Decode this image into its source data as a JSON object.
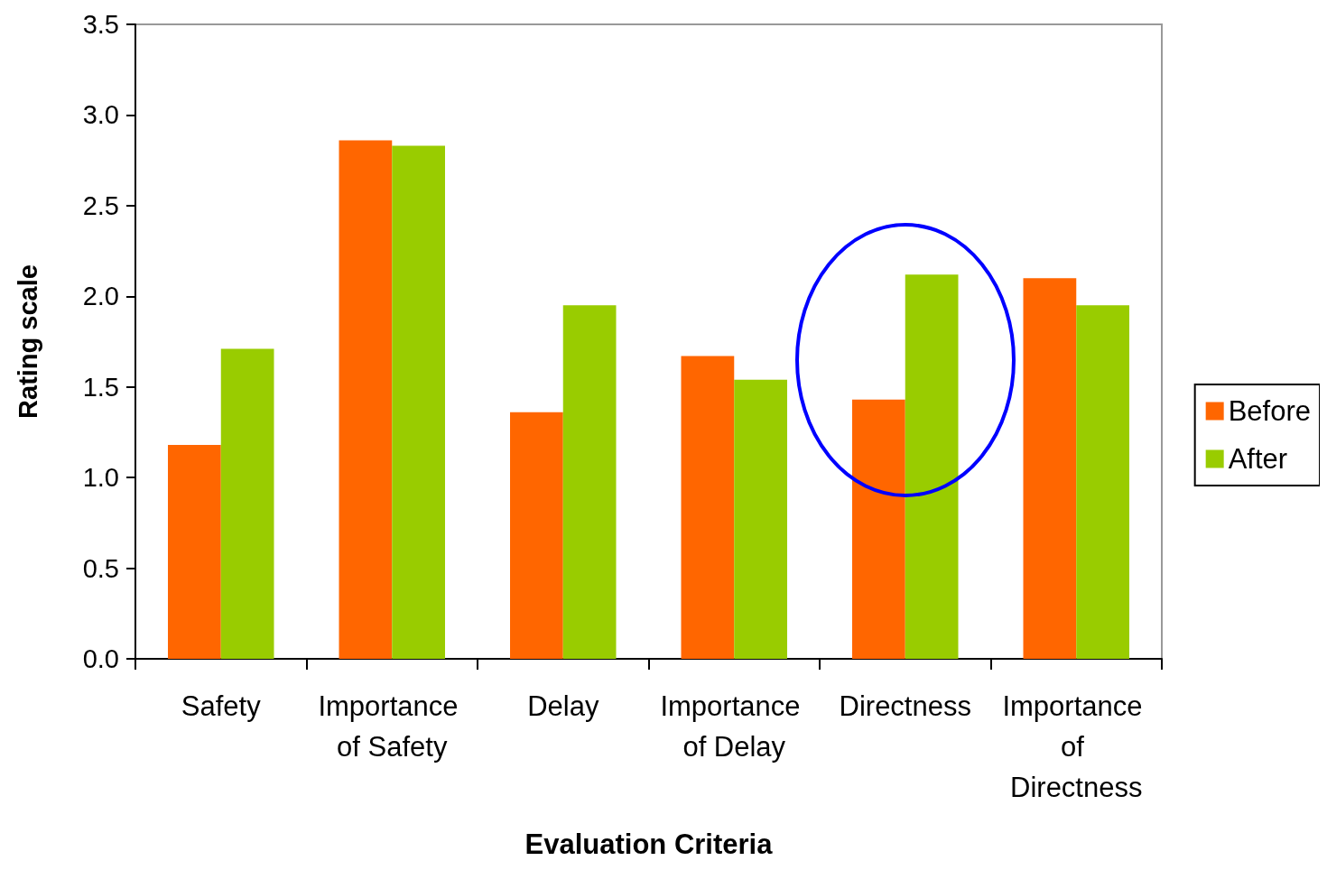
{
  "chart_data": {
    "type": "bar",
    "xlabel": "Evaluation Criteria",
    "ylabel": "Rating scale",
    "categories": [
      "Safety",
      "Importance of Safety",
      "Delay",
      "Importance of Delay",
      "Directness",
      "Importance of Directness"
    ],
    "series": [
      {
        "name": "Before",
        "color": "#ff6600",
        "values": [
          1.18,
          2.86,
          1.36,
          1.67,
          1.43,
          2.1
        ]
      },
      {
        "name": "After",
        "color": "#99cc00",
        "values": [
          1.71,
          2.83,
          1.95,
          1.54,
          2.12,
          1.95
        ]
      }
    ],
    "ylim": [
      0,
      3.5
    ],
    "yticks": [
      {
        "value": 0,
        "label": "0.0"
      },
      {
        "value": 0.5,
        "label": "0.5"
      },
      {
        "value": 1,
        "label": "1.0"
      },
      {
        "value": 1.5,
        "label": "1.5"
      },
      {
        "value": 2,
        "label": "2.0"
      },
      {
        "value": 2.5,
        "label": "2.5"
      },
      {
        "value": 3,
        "label": "3.0"
      },
      {
        "value": 3.5,
        "label": "3.5"
      }
    ],
    "grid": false,
    "legend": "right"
  }
}
